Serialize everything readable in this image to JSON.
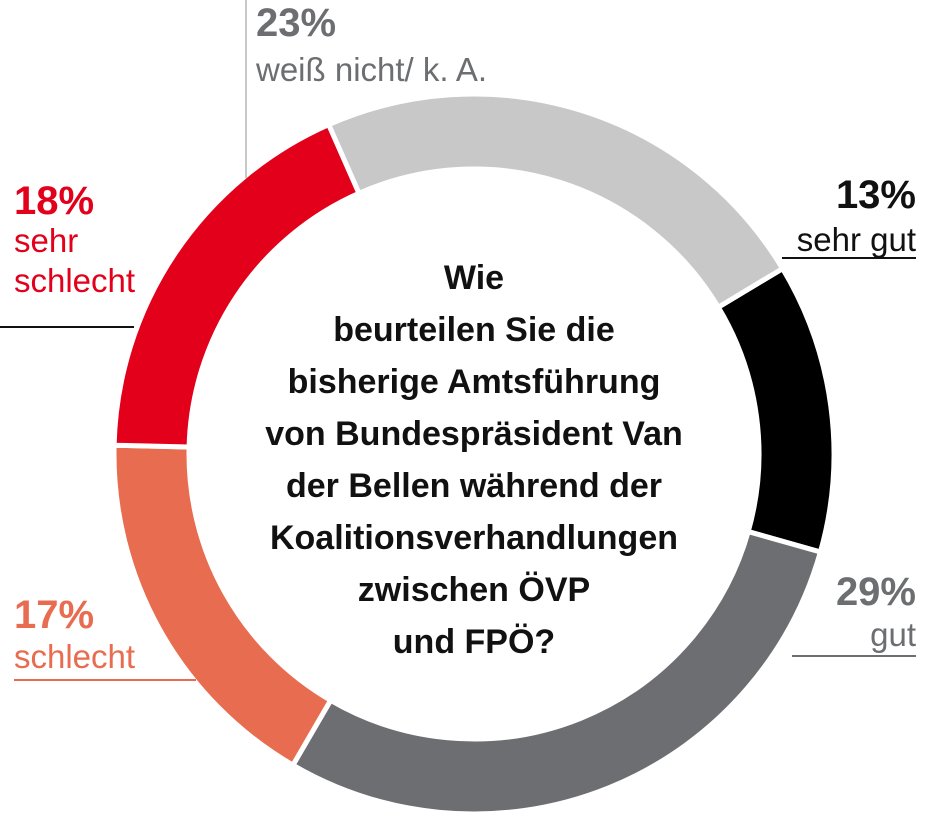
{
  "chart_data": {
    "type": "pie",
    "title": "Wie beurteilen Sie die bisherige Amtsführung von Bundespräsident Van der Bellen während der Koalitionsverhandlungen zwischen ÖVP und FPÖ?",
    "title_lines": [
      "Wie",
      "beurteilen Sie die",
      "bisherige Amtsführung",
      "von Bundespräsident Van",
      "der Bellen während der",
      "Koalitionsverhandlungen",
      "zwischen ÖVP",
      "und FPÖ?"
    ],
    "slices": [
      {
        "label": "sehr gut",
        "value": 13,
        "value_label": "13%",
        "color": "#000000"
      },
      {
        "label": "gut",
        "value": 29,
        "value_label": "29%",
        "color": "#6d6e71"
      },
      {
        "label": "schlecht",
        "value": 17,
        "value_label": "17%",
        "color": "#e86c4f"
      },
      {
        "label": "sehr\nschlecht",
        "label_lines": [
          "sehr",
          "schlecht"
        ],
        "value": 18,
        "value_label": "18%",
        "color": "#e2001a"
      },
      {
        "label": "weiß nicht/ k. A.",
        "value": 23,
        "value_label": "23%",
        "color": "#c8c8c9"
      }
    ],
    "donut": true,
    "legend": "none"
  }
}
